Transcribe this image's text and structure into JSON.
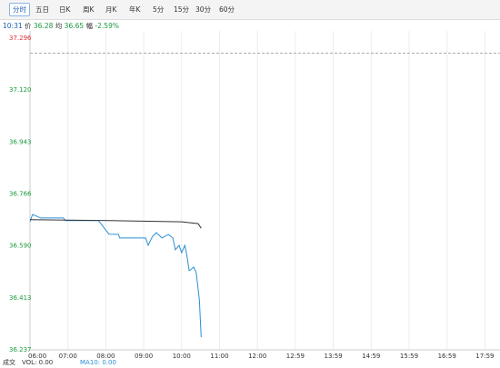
{
  "tabs": [
    "分时",
    "五日",
    "日K",
    "周K",
    "月K",
    "年K",
    "5分",
    "15分",
    "30分",
    "60分"
  ],
  "info": {
    "time": "10:31",
    "price_label": "价",
    "price": "36.28",
    "avg_label": "均",
    "avg": "36.65",
    "change_label": "幅",
    "change": "-2.59%"
  },
  "footer": {
    "label": "成交",
    "vol": "VOL: 0.00",
    "ma": "MA10: 0.00"
  },
  "chart_data": {
    "type": "line",
    "ylim": [
      36.237,
      37.296
    ],
    "yticks": [
      36.237,
      36.413,
      {
        "value": 36.59,
        "label": "36.590"
      },
      36.766,
      36.943,
      {
        "value": 37.12,
        "label": "37.120"
      },
      37.296
    ],
    "xticks": [
      "06:00",
      "07:00",
      "08:00",
      "09:00",
      "10:00",
      "11:00",
      "12:00",
      "12:59",
      "13:59",
      "14:59",
      "15:59",
      "16:59",
      "17:59"
    ],
    "reference_line": 37.245,
    "series": [
      {
        "color": "#2b8fd4",
        "x": [
          "06:00",
          "06:04",
          "06:17",
          "06:53",
          "06:56",
          "07:48",
          "07:51",
          "08:05",
          "08:20",
          "08:22",
          "09:03",
          "09:07",
          "09:14",
          "09:20",
          "09:29",
          "09:39",
          "09:46",
          "09:50",
          "09:56",
          "10:00",
          "10:05",
          "10:08",
          "10:12",
          "10:16",
          "10:19",
          "10:23",
          "10:28",
          "10:31"
        ],
        "values": [
          36.672,
          36.697,
          36.685,
          36.685,
          36.676,
          36.676,
          36.669,
          36.63,
          36.629,
          36.617,
          36.617,
          36.592,
          36.623,
          36.635,
          36.617,
          36.629,
          36.617,
          36.577,
          36.592,
          36.567,
          36.592,
          36.561,
          36.506,
          36.512,
          36.518,
          36.5,
          36.407,
          36.28
        ]
      },
      {
        "color": "#333333",
        "x": [
          "06:00",
          "08:05",
          "10:00",
          "10:26",
          "10:31"
        ],
        "values": [
          36.679,
          36.676,
          36.672,
          36.666,
          36.65
        ]
      }
    ]
  }
}
